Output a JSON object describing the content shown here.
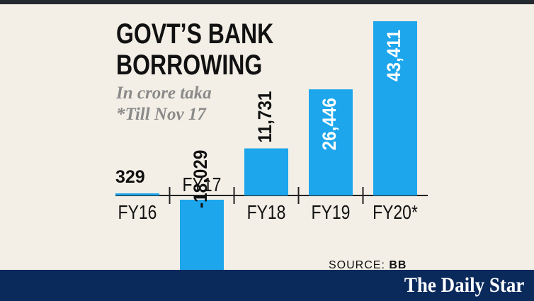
{
  "chart_data": {
    "type": "bar",
    "title_lines": [
      "GOVT’S BANK",
      "BORROWING"
    ],
    "subtitle_lines": [
      "In crore taka",
      "*Till Nov 17"
    ],
    "categories": [
      "FY16",
      "FY17",
      "FY18",
      "FY19",
      "FY20*"
    ],
    "values": [
      329,
      -18029,
      11731,
      26446,
      43411
    ],
    "value_labels": [
      "329",
      "-18,029",
      "11,731",
      "26,446",
      "43,411"
    ],
    "ylim": [
      -18029,
      43411
    ],
    "grid": false,
    "bar_color": "#1da6ec"
  },
  "source": {
    "prefix": "SOURCE:",
    "name": "BB"
  },
  "brand": "The Daily Star",
  "colors": {
    "background": "#f3efe6",
    "footer": "#0b2a5c",
    "text": "#111111",
    "subtitle": "#8a8a8a"
  }
}
